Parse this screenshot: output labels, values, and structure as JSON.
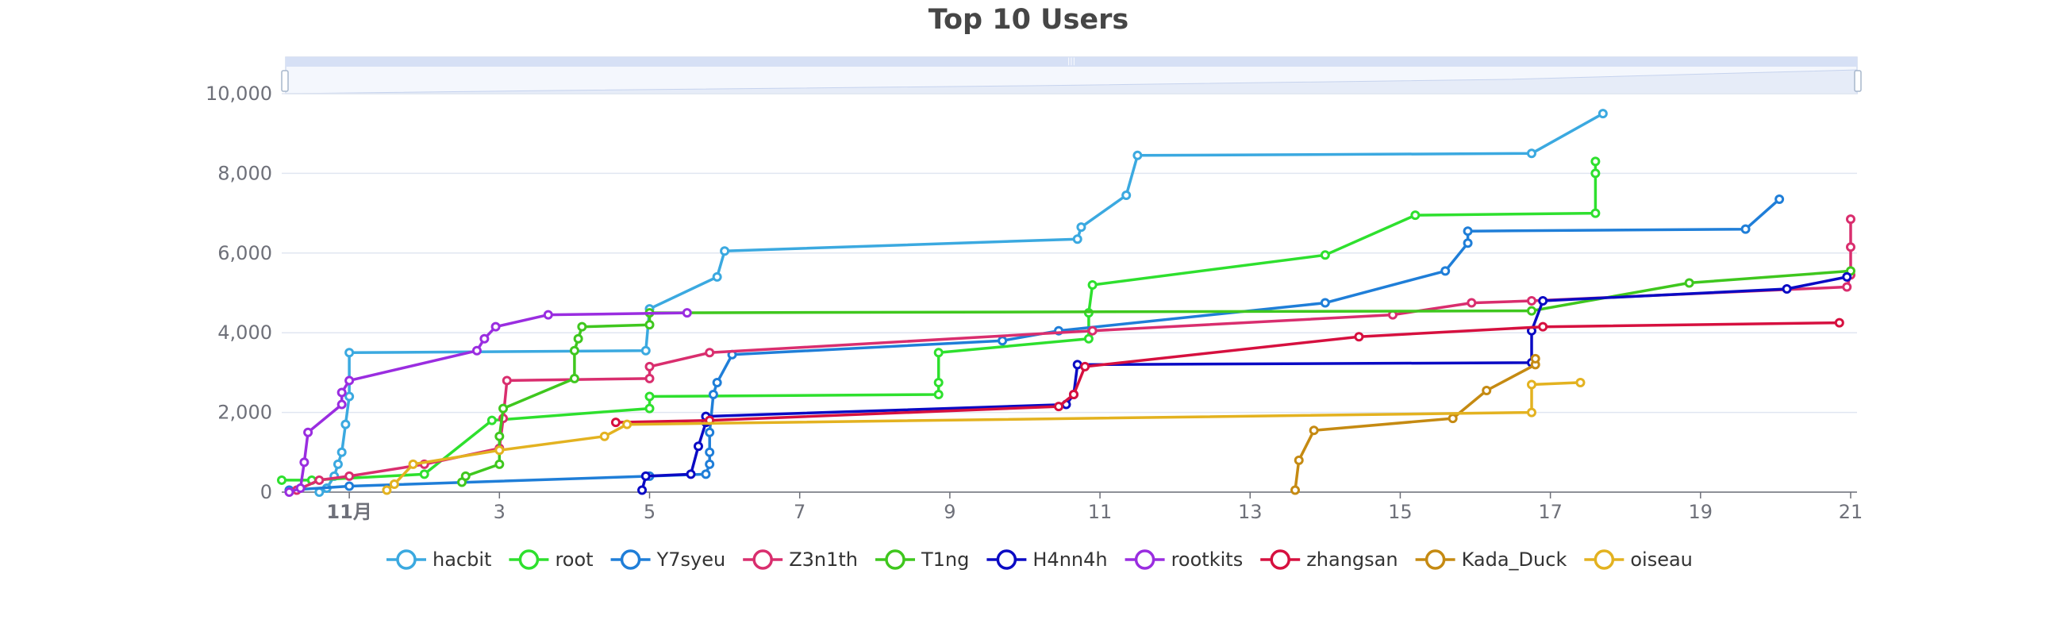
{
  "chart_data": {
    "type": "line",
    "title": "Top 10 Users",
    "xlabel": "",
    "ylabel": "",
    "x_unit": "day",
    "xlim": [
      0.1,
      21.0
    ],
    "ylim": [
      0,
      10000
    ],
    "y_ticks": [
      0,
      2000,
      4000,
      6000,
      8000,
      10000
    ],
    "y_tick_labels": [
      "0",
      "2,000",
      "4,000",
      "6,000",
      "8,000",
      "10,000"
    ],
    "x_ticks": [
      1,
      3,
      5,
      7,
      9,
      11,
      13,
      15,
      17,
      19,
      21
    ],
    "x_tick_labels": [
      "11月",
      "3",
      "5",
      "7",
      "9",
      "11",
      "13",
      "15",
      "17",
      "19",
      "21"
    ],
    "grid": true,
    "legend_position": "bottom",
    "data_zoom": true,
    "series": [
      {
        "name": "hacbit",
        "color": "#3ba9e0",
        "points": [
          [
            0.6,
            0
          ],
          [
            0.7,
            100
          ],
          [
            0.8,
            400
          ],
          [
            0.85,
            700
          ],
          [
            0.9,
            1000
          ],
          [
            0.95,
            1700
          ],
          [
            1.0,
            2400
          ],
          [
            1.0,
            3500
          ],
          [
            4.95,
            3550
          ],
          [
            5.0,
            4600
          ],
          [
            5.9,
            5400
          ],
          [
            6.0,
            6050
          ],
          [
            10.7,
            6350
          ],
          [
            10.75,
            6650
          ],
          [
            11.35,
            7450
          ],
          [
            11.5,
            8450
          ],
          [
            16.75,
            8500
          ],
          [
            17.7,
            9500
          ]
        ]
      },
      {
        "name": "root",
        "color": "#2ee02e",
        "points": [
          [
            0.1,
            300
          ],
          [
            0.5,
            300
          ],
          [
            2.0,
            450
          ],
          [
            2.9,
            1800
          ],
          [
            5.0,
            2100
          ],
          [
            5.0,
            2400
          ],
          [
            8.85,
            2450
          ],
          [
            8.85,
            2750
          ],
          [
            8.85,
            3500
          ],
          [
            10.85,
            3850
          ],
          [
            10.85,
            4500
          ],
          [
            10.9,
            5200
          ],
          [
            14.0,
            5950
          ],
          [
            15.2,
            6950
          ],
          [
            17.6,
            7000
          ],
          [
            17.6,
            8000
          ],
          [
            17.6,
            8300
          ]
        ]
      },
      {
        "name": "Y7syeu",
        "color": "#1f7ed8",
        "points": [
          [
            0.2,
            50
          ],
          [
            1.0,
            150
          ],
          [
            5.0,
            400
          ],
          [
            5.75,
            450
          ],
          [
            5.8,
            700
          ],
          [
            5.8,
            1000
          ],
          [
            5.8,
            1500
          ],
          [
            5.85,
            2450
          ],
          [
            5.9,
            2750
          ],
          [
            6.1,
            3450
          ],
          [
            9.7,
            3800
          ],
          [
            10.45,
            4050
          ],
          [
            14.0,
            4750
          ],
          [
            15.6,
            5550
          ],
          [
            15.9,
            6250
          ],
          [
            15.9,
            6550
          ],
          [
            19.6,
            6600
          ],
          [
            20.05,
            7350
          ]
        ]
      },
      {
        "name": "Z3n1th",
        "color": "#d92e6e",
        "points": [
          [
            0.3,
            50
          ],
          [
            0.6,
            300
          ],
          [
            1.0,
            400
          ],
          [
            2.0,
            700
          ],
          [
            3.0,
            1100
          ],
          [
            3.05,
            1850
          ],
          [
            3.1,
            2800
          ],
          [
            5.0,
            2850
          ],
          [
            5.0,
            3150
          ],
          [
            5.8,
            3500
          ],
          [
            10.9,
            4050
          ],
          [
            14.9,
            4450
          ],
          [
            15.95,
            4750
          ],
          [
            16.75,
            4800
          ],
          [
            20.95,
            5150
          ],
          [
            21.0,
            5450
          ],
          [
            21.0,
            6150
          ],
          [
            21.0,
            6850
          ]
        ]
      },
      {
        "name": "T1ng",
        "color": "#3fc71e",
        "points": [
          [
            2.5,
            250
          ],
          [
            2.55,
            400
          ],
          [
            3.0,
            700
          ],
          [
            3.0,
            1400
          ],
          [
            3.05,
            2100
          ],
          [
            4.0,
            2850
          ],
          [
            4.0,
            3550
          ],
          [
            4.05,
            3850
          ],
          [
            4.1,
            4150
          ],
          [
            5.0,
            4200
          ],
          [
            5.0,
            4500
          ],
          [
            16.75,
            4550
          ],
          [
            18.85,
            5250
          ],
          [
            21.0,
            5550
          ]
        ]
      },
      {
        "name": "H4nn4h",
        "color": "#0a0ac4",
        "points": [
          [
            4.9,
            50
          ],
          [
            4.95,
            400
          ],
          [
            5.55,
            450
          ],
          [
            5.65,
            1150
          ],
          [
            5.75,
            1750
          ],
          [
            5.75,
            1900
          ],
          [
            10.55,
            2200
          ],
          [
            10.65,
            2450
          ],
          [
            10.7,
            3200
          ],
          [
            16.75,
            3250
          ],
          [
            16.75,
            4050
          ],
          [
            16.9,
            4800
          ],
          [
            20.15,
            5100
          ],
          [
            20.95,
            5400
          ]
        ]
      },
      {
        "name": "rootkits",
        "color": "#9a2de0",
        "points": [
          [
            0.2,
            0
          ],
          [
            0.35,
            100
          ],
          [
            0.4,
            750
          ],
          [
            0.45,
            1500
          ],
          [
            0.9,
            2200
          ],
          [
            0.9,
            2500
          ],
          [
            1.0,
            2800
          ],
          [
            2.7,
            3550
          ],
          [
            2.8,
            3850
          ],
          [
            2.95,
            4150
          ],
          [
            3.65,
            4450
          ],
          [
            5.5,
            4500
          ]
        ]
      },
      {
        "name": "zhangsan",
        "color": "#d6103f",
        "points": [
          [
            4.55,
            1750
          ],
          [
            5.8,
            1800
          ],
          [
            10.45,
            2150
          ],
          [
            10.65,
            2450
          ],
          [
            10.8,
            3150
          ],
          [
            14.45,
            3900
          ],
          [
            16.9,
            4150
          ],
          [
            20.85,
            4250
          ]
        ]
      },
      {
        "name": "Kada_Duck",
        "color": "#c58a12",
        "points": [
          [
            13.6,
            50
          ],
          [
            13.65,
            800
          ],
          [
            13.85,
            1550
          ],
          [
            15.7,
            1850
          ],
          [
            16.15,
            2550
          ],
          [
            16.8,
            3200
          ],
          [
            16.8,
            3350
          ]
        ]
      },
      {
        "name": "oiseau",
        "color": "#e3b220",
        "points": [
          [
            1.5,
            50
          ],
          [
            1.6,
            200
          ],
          [
            1.85,
            700
          ],
          [
            3.0,
            1050
          ],
          [
            4.4,
            1400
          ],
          [
            4.7,
            1700
          ],
          [
            16.75,
            2000
          ],
          [
            16.75,
            2700
          ],
          [
            17.4,
            2750
          ]
        ]
      }
    ]
  }
}
